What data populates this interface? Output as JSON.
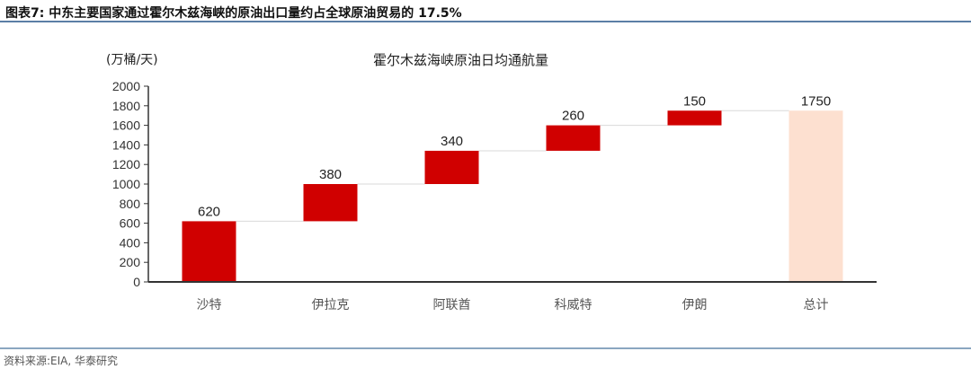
{
  "figure_title": "图表7:  中东主要国家通过霍尔木兹海峡的原油出口量约占全球原油贸易的 17.5%",
  "source": "资料来源:EIA, 华泰研究",
  "colors": {
    "increase": "#d00000",
    "total": "#fde0d0",
    "connector": "#d9d9d9",
    "axis": "#333333"
  },
  "chart_data": {
    "type": "bar",
    "subtype": "waterfall",
    "title": "霍尔木兹海峡原油日均通航量",
    "ylabel": "(万桶/天)",
    "xlabel": "",
    "categories": [
      "沙特",
      "伊拉克",
      "阿联酋",
      "科威特",
      "伊朗",
      "总计"
    ],
    "values": [
      620,
      380,
      340,
      260,
      150,
      1750
    ],
    "is_total": [
      false,
      false,
      false,
      false,
      false,
      true
    ],
    "ylim": [
      0,
      2000
    ],
    "yticks": [
      0,
      200,
      400,
      600,
      800,
      1000,
      1200,
      1400,
      1600,
      1800,
      2000
    ],
    "grid": false,
    "legend": "none"
  }
}
